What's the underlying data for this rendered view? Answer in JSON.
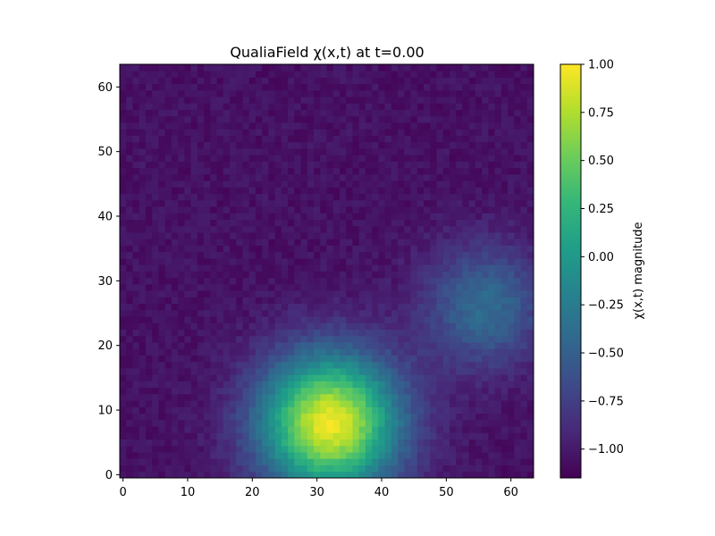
{
  "chart_data": {
    "type": "heatmap",
    "title": "QualiaField χ(x,t) at t=0.00",
    "xlabel": "",
    "ylabel": "",
    "grid": false,
    "origin": "lower",
    "xlim": [
      -0.5,
      63.5
    ],
    "ylim": [
      -0.5,
      63.5
    ],
    "x_ticks": [
      0,
      10,
      20,
      30,
      40,
      50,
      60
    ],
    "y_ticks": [
      0,
      10,
      20,
      30,
      40,
      50,
      60
    ],
    "grid_size": [
      64,
      64
    ],
    "colormap": "viridis",
    "value_range": [
      -1.15,
      1.0
    ],
    "background_level": -1.05,
    "noise_amplitude": 0.07,
    "blobs": [
      {
        "center_x": 32,
        "center_y": 8,
        "peak": 2.0,
        "sigma": 7.5
      },
      {
        "center_x": 56,
        "center_y": 26,
        "peak": 0.65,
        "sigma": 6.5
      }
    ],
    "colorbar": {
      "label": "χ(x,t) magnitude",
      "ticks": [
        1.0,
        0.75,
        0.5,
        0.25,
        0.0,
        -0.25,
        -0.5,
        -0.75,
        -1.0
      ],
      "tick_labels": [
        "1.00",
        "0.75",
        "0.50",
        "0.25",
        "0.00",
        "−0.25",
        "−0.50",
        "−0.75",
        "−1.00"
      ]
    }
  }
}
